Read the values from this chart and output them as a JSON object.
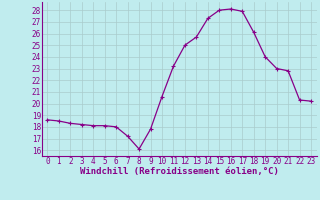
{
  "x": [
    0,
    1,
    2,
    3,
    4,
    5,
    6,
    7,
    8,
    9,
    10,
    11,
    12,
    13,
    14,
    15,
    16,
    17,
    18,
    19,
    20,
    21,
    22,
    23
  ],
  "y": [
    18.6,
    18.5,
    18.3,
    18.2,
    18.1,
    18.1,
    18.0,
    17.2,
    16.1,
    17.8,
    20.6,
    23.2,
    25.0,
    25.7,
    27.3,
    28.0,
    28.1,
    27.9,
    26.1,
    24.0,
    23.0,
    22.8,
    20.3,
    20.2
  ],
  "line_color": "#880088",
  "marker": "+",
  "marker_size": 3,
  "marker_linewidth": 0.8,
  "bg_color": "#c0ecee",
  "grid_color": "#aacccc",
  "xlabel": "Windchill (Refroidissement éolien,°C)",
  "ylabel_ticks": [
    16,
    17,
    18,
    19,
    20,
    21,
    22,
    23,
    24,
    25,
    26,
    27,
    28
  ],
  "xlim": [
    -0.5,
    23.5
  ],
  "ylim": [
    15.5,
    28.7
  ],
  "xticks": [
    0,
    1,
    2,
    3,
    4,
    5,
    6,
    7,
    8,
    9,
    10,
    11,
    12,
    13,
    14,
    15,
    16,
    17,
    18,
    19,
    20,
    21,
    22,
    23
  ],
  "tick_fontsize": 5.5,
  "xlabel_fontsize": 6.5
}
